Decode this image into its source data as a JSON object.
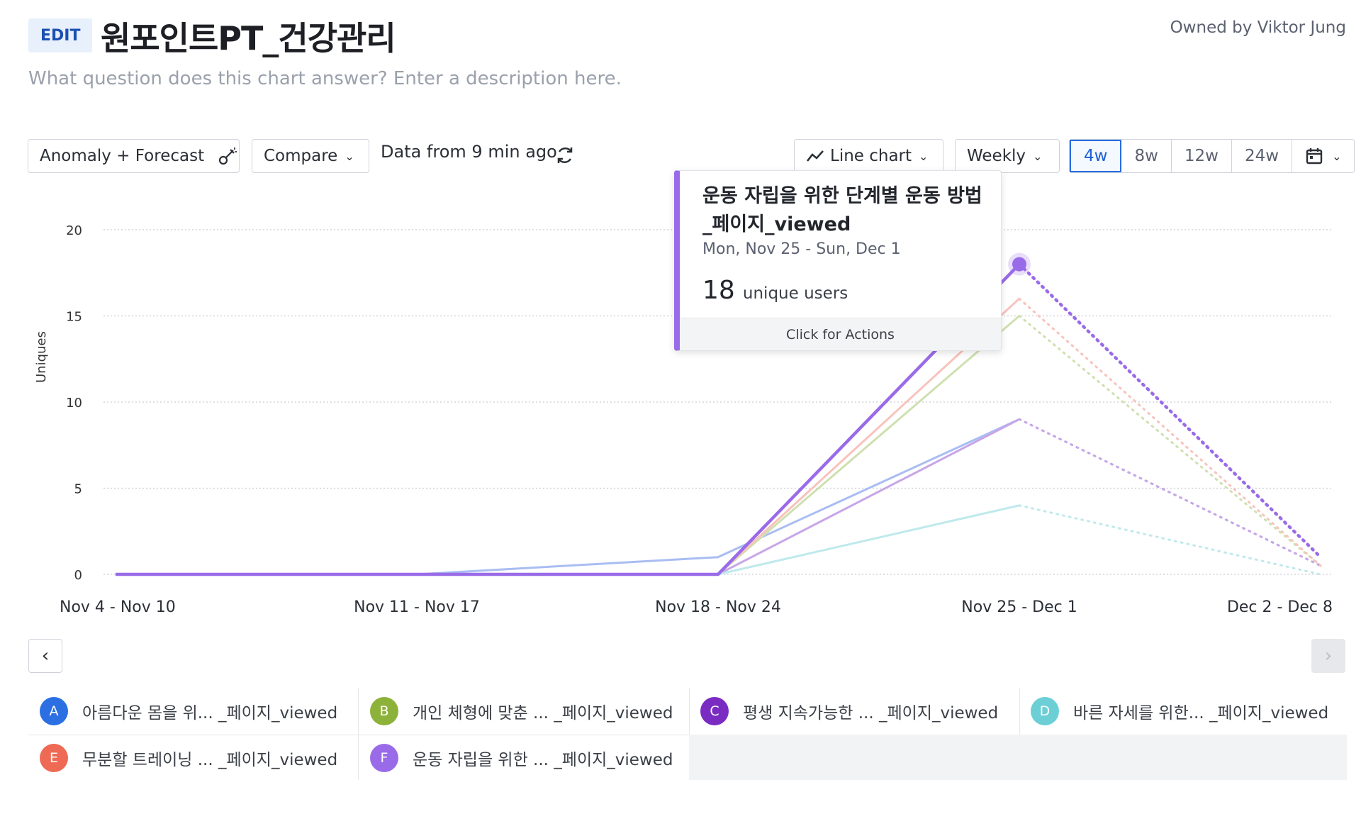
{
  "header": {
    "edit_label": "EDIT",
    "title": "원포인트PT_건강관리",
    "owner": "Owned by Viktor Jung",
    "description_placeholder": "What question does this chart answer? Enter a description here."
  },
  "toolbar": {
    "anomaly_label": "Anomaly + Forecast",
    "compare_label": "Compare",
    "data_freshness": "Data from 9 min ago",
    "chart_type_label": "Line chart",
    "interval_label": "Weekly",
    "ranges": [
      "4w",
      "8w",
      "12w",
      "24w"
    ],
    "active_range": "4w"
  },
  "chart_data": {
    "type": "line",
    "ylabel": "Uniques",
    "ylim": [
      0,
      20
    ],
    "yticks": [
      0,
      5,
      10,
      15,
      20
    ],
    "categories": [
      "Nov 4 - Nov 10",
      "Nov 11 - Nov 17",
      "Nov 18 - Nov 24",
      "Nov 25 - Dec 1",
      "Dec 2 - Dec 8"
    ],
    "forecast_from_index": 3,
    "series": [
      {
        "id": "A",
        "color": "#a9bdf2",
        "values": [
          0,
          0,
          1,
          9,
          0.5
        ]
      },
      {
        "id": "B",
        "color": "#cfe0b0",
        "values": [
          0,
          0,
          0,
          15,
          0.5
        ]
      },
      {
        "id": "C",
        "color": "#c7a6e8",
        "values": [
          0,
          0,
          0,
          9,
          0.5
        ]
      },
      {
        "id": "D",
        "color": "#bfe9ec",
        "values": [
          0,
          0,
          0,
          4,
          0
        ]
      },
      {
        "id": "E",
        "color": "#f8c3bc",
        "values": [
          0,
          0,
          0,
          16,
          0.5
        ]
      },
      {
        "id": "F",
        "color": "#9a6be8",
        "values": [
          0,
          0,
          0,
          18,
          1
        ],
        "highlight": true
      }
    ]
  },
  "tooltip": {
    "name": "운동 자립을 위한 단계별 운동 방법_페이지_viewed",
    "date_range": "Mon, Nov 25 - Sun, Dec 1",
    "value": "18",
    "unit": "unique users",
    "footer": "Click for Actions"
  },
  "legend": [
    {
      "letter": "A",
      "label": "아름다운 몸을 위... _페이지_viewed",
      "color": "#2b6fe3"
    },
    {
      "letter": "B",
      "label": "개인 체형에 맞춘 ... _페이지_viewed",
      "color": "#8db23a"
    },
    {
      "letter": "C",
      "label": "평생 지속가능한 ... _페이지_viewed",
      "color": "#7a2cc2"
    },
    {
      "letter": "D",
      "label": "바른 자세를 위한... _페이지_viewed",
      "color": "#6ccfd6"
    },
    {
      "letter": "E",
      "label": "무분할 트레이닝 ... _페이지_viewed",
      "color": "#ef6a54"
    },
    {
      "letter": "F",
      "label": "운동 자립을 위한 ... _페이지_viewed",
      "color": "#9a6be8"
    }
  ],
  "icons": {
    "anomaly": "wand-icon",
    "chevron": "chevron-down-icon",
    "refresh": "refresh-icon",
    "line_chart": "line-chart-icon",
    "calendar": "calendar-icon",
    "prev": "chevron-left-icon",
    "next": "chevron-right-icon"
  }
}
